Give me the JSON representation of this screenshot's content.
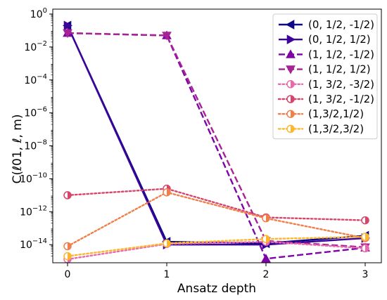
{
  "chart_data": {
    "type": "line",
    "xlabel": "Ansatz depth",
    "ylabel": "C(ℓ01, ℓ, m)",
    "x": [
      0,
      1,
      2,
      3
    ],
    "xticks": [
      "0",
      "1",
      "2",
      "3"
    ],
    "yscale": "log",
    "ylim_exponent": [
      -15.1,
      0
    ],
    "yticks": [
      {
        "base": "10",
        "exp": "0",
        "exponent_value": 0
      },
      {
        "base": "10",
        "exp": "−2",
        "exponent_value": -2
      },
      {
        "base": "10",
        "exp": "−4",
        "exponent_value": -4
      },
      {
        "base": "10",
        "exp": "−6",
        "exponent_value": -6
      },
      {
        "base": "10",
        "exp": "−8",
        "exponent_value": -8
      },
      {
        "base": "10",
        "exp": "−10",
        "exponent_value": -10
      },
      {
        "base": "10",
        "exp": "−12",
        "exponent_value": -12
      },
      {
        "base": "10",
        "exp": "−14",
        "exponent_value": -14
      }
    ],
    "grid": false,
    "legend_position": "top-right",
    "series": [
      {
        "name": "(0, 1/2, -1/2)",
        "color": "#0d0887",
        "style": "solid",
        "marker": "triangle-left",
        "fill": "solid",
        "values": [
          0.2,
          1.5e-14,
          1.2e-14,
          3.5e-14
        ]
      },
      {
        "name": "(0, 1/2, 1/2)",
        "color": "#3d049b",
        "style": "solid",
        "marker": "triangle-right",
        "fill": "solid",
        "values": [
          0.2,
          1e-14,
          1e-14,
          2.5e-14
        ]
      },
      {
        "name": "(1, 1/2, -1/2)",
        "color": "#7e03a8",
        "style": "dashed",
        "marker": "triangle-up",
        "fill": "solid",
        "values": [
          0.07,
          0.05,
          1.4e-15,
          6.5e-15
        ]
      },
      {
        "name": "(1, 1/2, 1/2)",
        "color": "#a82296",
        "style": "dashed",
        "marker": "triangle-down",
        "fill": "solid",
        "values": [
          0.07,
          0.05,
          1.7e-14,
          7e-15
        ]
      },
      {
        "name": "(1, 3/2, -3/2)",
        "color": "#e76bab",
        "style": "dotted",
        "marker": "circle",
        "fill": "half",
        "values": [
          1.3e-15,
          1.1e-14,
          1.5e-14,
          6e-15
        ]
      },
      {
        "name": "(1, 3/2, -1/2)",
        "color": "#d8456c",
        "style": "dotted",
        "marker": "circle",
        "fill": "half",
        "values": [
          1e-11,
          2.5e-11,
          4.5e-13,
          3e-13
        ]
      },
      {
        "name": "(1,3/2,1/2)",
        "color": "#f07f4a",
        "style": "dotted",
        "marker": "circle",
        "fill": "half",
        "values": [
          8e-15,
          1.5e-11,
          4e-13,
          2.5e-14
        ]
      },
      {
        "name": "(1,3/2,3/2)",
        "color": "#fcb72e",
        "style": "dotted",
        "marker": "circle",
        "fill": "half",
        "values": [
          2e-15,
          1.2e-14,
          2.2e-14,
          3e-14
        ]
      }
    ]
  }
}
